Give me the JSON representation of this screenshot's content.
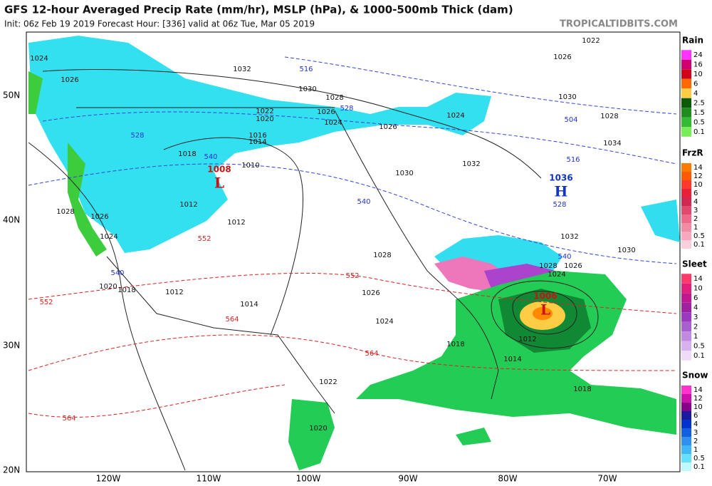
{
  "header": {
    "title": "GFS 12-hour Averaged Precip Rate (mm/hr), MSLP (hPa), & 1000-500mb Thick (dam)",
    "subtitle": "Init: 06z Feb 19 2019   Forecast Hour: [336]   valid at 06z Tue, Mar 05 2019",
    "credit": "TROPICALTIDBITS.COM"
  },
  "map": {
    "lat_labels": [
      "50N",
      "40N",
      "30N",
      "20N"
    ],
    "lon_labels": [
      "120W",
      "110W",
      "100W",
      "90W",
      "80W",
      "70W"
    ],
    "isobar_labels": [
      "1024",
      "1026",
      "1032",
      "1030",
      "1028",
      "1026",
      "1024",
      "1022",
      "1020",
      "1016",
      "1014",
      "1018",
      "1010",
      "1012",
      "1012",
      "1028",
      "1026",
      "1024",
      "1020",
      "1018",
      "1012",
      "1014",
      "1028",
      "1026",
      "1024",
      "1018",
      "1022",
      "1020",
      "1012",
      "1014",
      "1018",
      "1030",
      "1032",
      "1032",
      "1030",
      "1028",
      "1034",
      "1030",
      "1026",
      "1022",
      "1026",
      "1024",
      "1028",
      "1026",
      "1024"
    ],
    "thickness_cold_labels": [
      "516",
      "528",
      "528",
      "540",
      "540",
      "540",
      "504",
      "516",
      "528",
      "540"
    ],
    "thickness_warm_labels": [
      "552",
      "552",
      "552",
      "564",
      "564",
      "564"
    ],
    "centers": [
      {
        "symbol": "L",
        "pressure": "1008"
      },
      {
        "symbol": "H",
        "pressure": "1036"
      },
      {
        "symbol": "L",
        "pressure": "1006"
      }
    ]
  },
  "legends": [
    {
      "title": "Rain",
      "labels": [
        "24",
        "16",
        "10",
        "6",
        "4",
        "2.5",
        "1.5",
        "0.5",
        "0.1"
      ],
      "colors": [
        "#ff33ff",
        "#d1006f",
        "#d0021b",
        "#ff6a00",
        "#ffcc44",
        "#0a5a0a",
        "#1e8c1e",
        "#33bb33",
        "#77ee55"
      ]
    },
    {
      "title": "FrzR",
      "labels": [
        "14",
        "12",
        "10",
        "6",
        "4",
        "3",
        "2",
        "1",
        "0.5",
        "0.1"
      ],
      "colors": [
        "#ff7a00",
        "#ff5a00",
        "#ff3a2a",
        "#e8203a",
        "#d02850",
        "#e04a70",
        "#ee6a8c",
        "#f38aa6",
        "#f7a8be",
        "#fbd0dc"
      ]
    },
    {
      "title": "Sleet",
      "labels": [
        "14",
        "10",
        "6",
        "4",
        "3",
        "2",
        "1",
        "0.5",
        "0.1"
      ],
      "colors": [
        "#ff3a6a",
        "#e0207a",
        "#c01890",
        "#a020a0",
        "#9a3ac0",
        "#a860d0",
        "#c08ae0",
        "#d8b2ee",
        "#eedcf8"
      ]
    },
    {
      "title": "Snow",
      "labels": [
        "14",
        "12",
        "10",
        "6",
        "4",
        "3",
        "2",
        "1",
        "0.5",
        "0.1"
      ],
      "colors": [
        "#ff33cc",
        "#cc11aa",
        "#880088",
        "#1a1aa0",
        "#0033cc",
        "#1060e0",
        "#3090f0",
        "#40b8f8",
        "#66e0ff",
        "#bff8ff"
      ]
    }
  ]
}
